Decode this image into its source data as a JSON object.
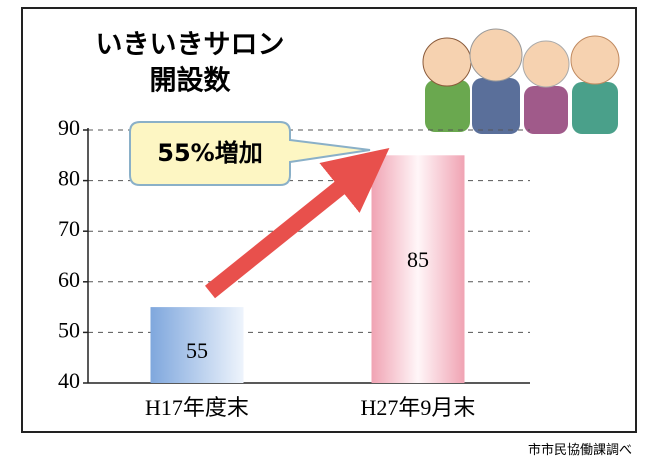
{
  "chart_data": {
    "type": "bar",
    "title": [
      "いきいきサロン",
      "開設数"
    ],
    "annotation": "55%増加",
    "source": "市市民協働課調べ",
    "categories": [
      "H17年度末",
      "H27年9月末"
    ],
    "values": [
      55,
      85
    ],
    "colors": [
      "#7fa7dd",
      "#f0a3b3"
    ],
    "ylim": [
      40,
      90
    ],
    "yticks": [
      40,
      50,
      60,
      70,
      80,
      90
    ],
    "grid": true
  }
}
